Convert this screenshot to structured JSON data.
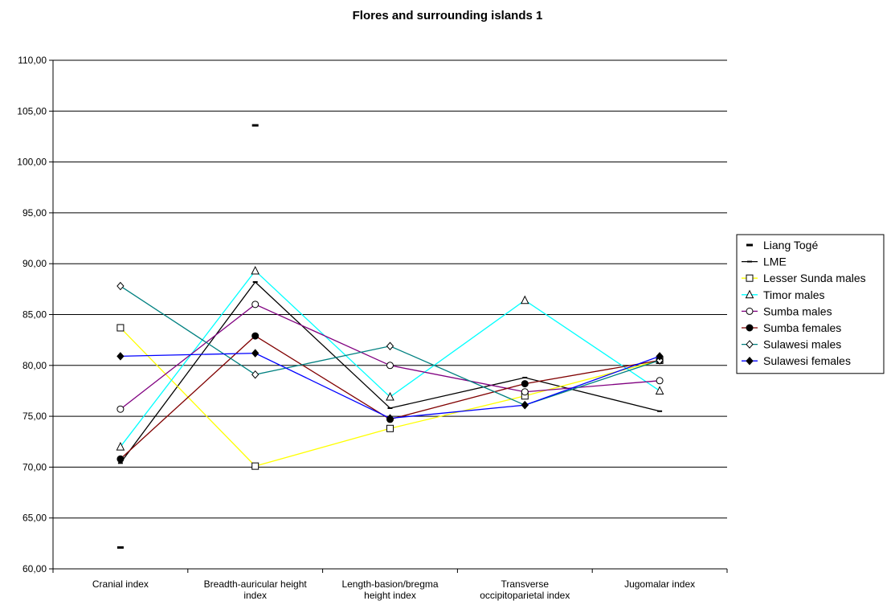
{
  "chart_data": {
    "type": "line",
    "title": "Flores and surrounding islands 1",
    "xlabel": "",
    "ylabel": "",
    "ylim": [
      60,
      110
    ],
    "yticks": [
      "60,00",
      "65,00",
      "70,00",
      "75,00",
      "80,00",
      "85,00",
      "90,00",
      "95,00",
      "100,00",
      "105,00",
      "110,00"
    ],
    "grid": true,
    "legend_position": "right",
    "categories": [
      [
        "Cranial index"
      ],
      [
        "Breadth-auricular height",
        "index"
      ],
      [
        "Length-basion/bregma",
        "height index"
      ],
      [
        "Transverse",
        "occipitoparietal index"
      ],
      [
        "Jugomalar index"
      ]
    ],
    "series": [
      {
        "name": "Liang Togé",
        "color": "#000000",
        "marker": "dash",
        "line": false,
        "values": [
          62.1,
          103.6,
          null,
          null,
          null
        ]
      },
      {
        "name": "LME",
        "color": "#000000",
        "marker": "small-dash",
        "line": true,
        "values": [
          70.4,
          88.2,
          75.8,
          78.8,
          75.5
        ]
      },
      {
        "name": "Lesser Sunda males",
        "color": "#ffff00",
        "marker": "square",
        "line": true,
        "values": [
          83.7,
          70.1,
          73.8,
          77.0,
          80.5
        ]
      },
      {
        "name": "Timor males",
        "color": "#00ffff",
        "marker": "triangle",
        "line": true,
        "values": [
          72.0,
          89.3,
          76.9,
          86.4,
          77.5
        ]
      },
      {
        "name": "Sumba males",
        "color": "#800080",
        "marker": "circle",
        "line": true,
        "values": [
          75.7,
          86.0,
          80.0,
          77.4,
          78.5
        ]
      },
      {
        "name": "Sumba females",
        "color": "#800000",
        "marker": "filled-circle",
        "line": true,
        "values": [
          70.8,
          82.9,
          74.7,
          78.2,
          80.5
        ]
      },
      {
        "name": "Sulawesi males",
        "color": "#008080",
        "marker": "diamond",
        "line": true,
        "values": [
          87.8,
          79.1,
          81.9,
          76.1,
          80.5
        ]
      },
      {
        "name": "Sulawesi females",
        "color": "#0000ff",
        "marker": "filled-diamond",
        "line": true,
        "values": [
          80.9,
          81.2,
          74.8,
          76.1,
          80.9
        ]
      }
    ]
  }
}
